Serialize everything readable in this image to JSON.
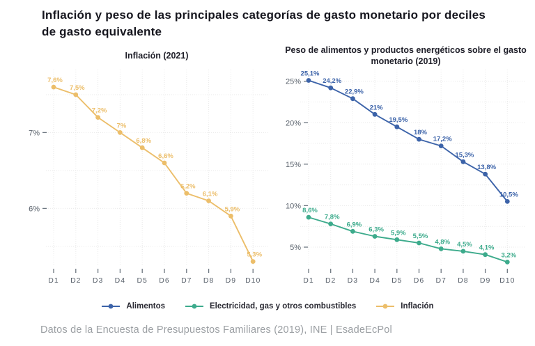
{
  "page": {
    "title": "Inflación y peso de las principales categorías de gasto monetario por deciles de gasto equivalente",
    "footer": "Datos de la Encuesta de Presupuestos Familiares (2019), INE | EsadeEcPol"
  },
  "colors": {
    "alimentos": "#3c63a9",
    "electricidad": "#3dab8c",
    "inflacion": "#ecbe6a",
    "grid": "#e9e9e9",
    "axis_text": "#59616b",
    "tick_mark": "#6d7680",
    "title_text": "#16161e",
    "footer_text": "#9b9fa3"
  },
  "legend": {
    "items": [
      {
        "label": "Alimentos",
        "color": "#3c63a9"
      },
      {
        "label": "Electricidad, gas y otros combustibles",
        "color": "#3dab8c"
      },
      {
        "label": "Inflación",
        "color": "#ecbe6a"
      }
    ],
    "position": "bottom"
  },
  "chart_data": [
    {
      "type": "line",
      "title": "Inflación (2021)",
      "categories": [
        "D1",
        "D2",
        "D3",
        "D4",
        "D5",
        "D6",
        "D7",
        "D8",
        "D9",
        "D10"
      ],
      "series": [
        {
          "name": "Inflación",
          "color": "#ecbe6a",
          "values": [
            7.6,
            7.5,
            7.2,
            7.0,
            6.8,
            6.6,
            6.2,
            6.1,
            5.9,
            5.3
          ],
          "labels": [
            "7,6%",
            "7,5%",
            "7,2%",
            "7%",
            "6,8%",
            "6,6%",
            "6,2%",
            "6,1%",
            "5,9%",
            "5,3%"
          ]
        }
      ],
      "xlabel": "",
      "ylabel": "",
      "ylim": [
        5.26,
        7.83
      ],
      "yticks": [
        {
          "value": 7,
          "label": "7%"
        },
        {
          "value": 6,
          "label": "6%"
        }
      ],
      "gridline_values": [
        7.5,
        7.0,
        6.5,
        6.0,
        5.5
      ],
      "grid": true,
      "legend_position": "bottom"
    },
    {
      "type": "line",
      "title": "Peso de alimentos y productos energéticos sobre el gasto monetario (2019)",
      "categories": [
        "D1",
        "D2",
        "D3",
        "D4",
        "D5",
        "D6",
        "D7",
        "D8",
        "D9",
        "D10"
      ],
      "series": [
        {
          "name": "Alimentos",
          "color": "#3c63a9",
          "values": [
            25.1,
            24.2,
            22.9,
            21.0,
            19.5,
            18.0,
            17.2,
            15.3,
            13.8,
            10.5
          ],
          "labels": [
            "25,1%",
            "24,2%",
            "22,9%",
            "21%",
            "19,5%",
            "18%",
            "17,2%",
            "15,3%",
            "13,8%",
            "10,5%"
          ]
        },
        {
          "name": "Electricidad, gas y otros combustibles",
          "color": "#3dab8c",
          "values": [
            8.6,
            7.8,
            6.9,
            6.3,
            5.9,
            5.5,
            4.8,
            4.5,
            4.1,
            3.2
          ],
          "labels": [
            "8,6%",
            "7,8%",
            "6,9%",
            "6,3%",
            "5,9%",
            "5,5%",
            "4,8%",
            "4,5%",
            "4,1%",
            "3,2%"
          ]
        }
      ],
      "xlabel": "",
      "ylabel": "",
      "ylim": [
        2.9,
        26.4
      ],
      "yticks": [
        {
          "value": 25,
          "label": "25%"
        },
        {
          "value": 20,
          "label": "20%"
        },
        {
          "value": 15,
          "label": "15%"
        },
        {
          "value": 10,
          "label": "10%"
        },
        {
          "value": 5,
          "label": "5%"
        }
      ],
      "gridline_values": [
        25,
        22.5,
        20,
        17.5,
        15,
        12.5,
        10,
        7.5,
        5
      ],
      "grid": true,
      "legend_position": "bottom"
    }
  ]
}
